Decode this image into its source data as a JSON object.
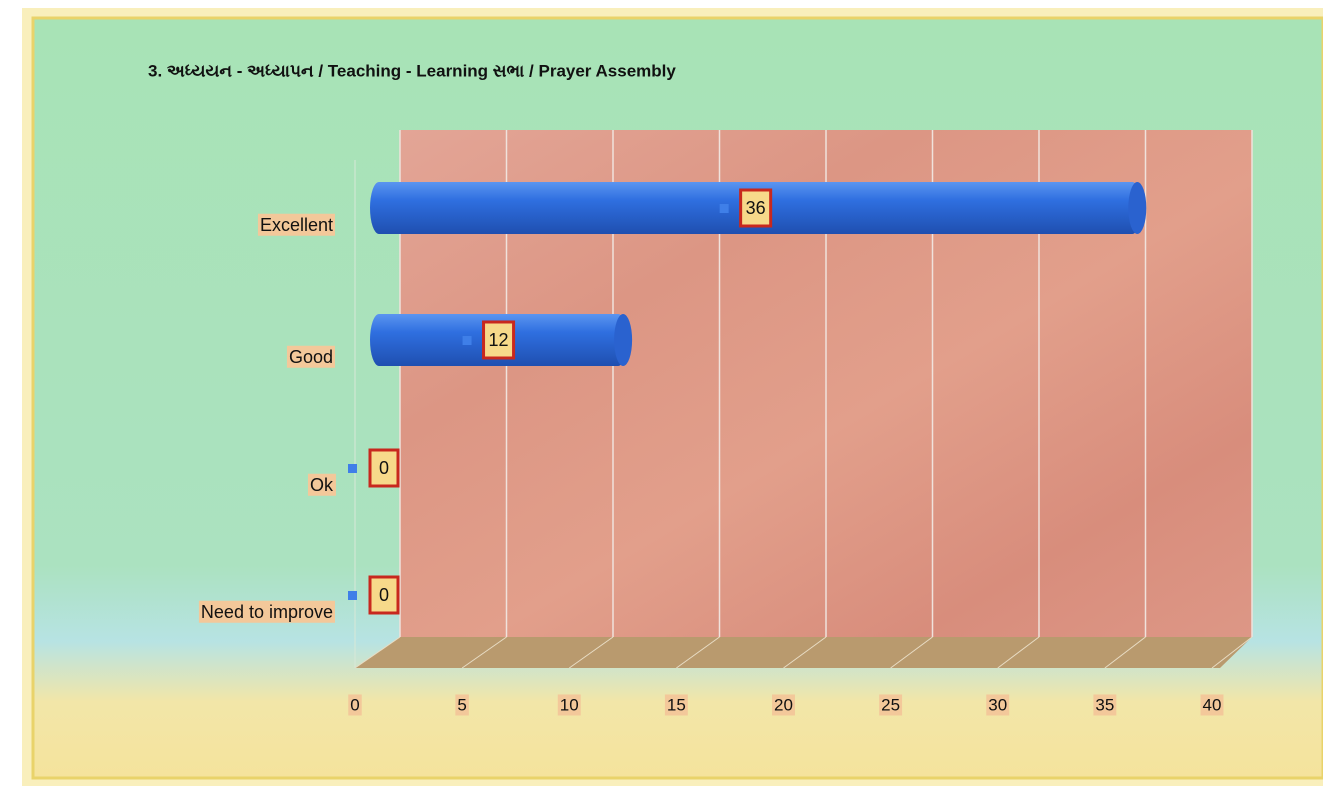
{
  "chart_data": {
    "type": "bar",
    "orientation": "horizontal",
    "title": "3. અધ્યયન - અધ્યાપન / Teaching - Learning સભા / Prayer Assembly",
    "categories": [
      "Excellent",
      "Good",
      "Ok",
      "Need to improve"
    ],
    "values": [
      36,
      12,
      0,
      0
    ],
    "color": "#2f6fe0",
    "xlim": [
      0,
      40
    ],
    "xticks": [
      0,
      5,
      10,
      15,
      20,
      25,
      30,
      35,
      40
    ],
    "grid": true
  }
}
